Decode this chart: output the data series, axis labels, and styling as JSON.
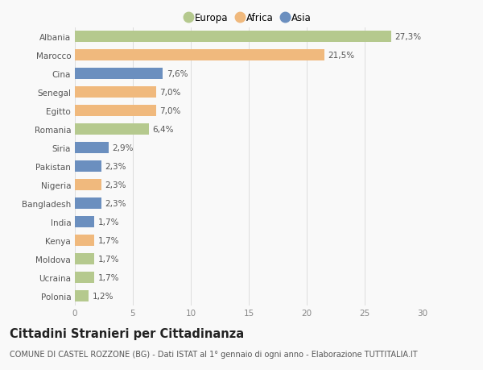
{
  "categories": [
    "Albania",
    "Marocco",
    "Cina",
    "Senegal",
    "Egitto",
    "Romania",
    "Siria",
    "Pakistan",
    "Nigeria",
    "Bangladesh",
    "India",
    "Kenya",
    "Moldova",
    "Ucraina",
    "Polonia"
  ],
  "values": [
    27.3,
    21.5,
    7.6,
    7.0,
    7.0,
    6.4,
    2.9,
    2.3,
    2.3,
    2.3,
    1.7,
    1.7,
    1.7,
    1.7,
    1.2
  ],
  "labels": [
    "27,3%",
    "21,5%",
    "7,6%",
    "7,0%",
    "7,0%",
    "6,4%",
    "2,9%",
    "2,3%",
    "2,3%",
    "2,3%",
    "1,7%",
    "1,7%",
    "1,7%",
    "1,7%",
    "1,2%"
  ],
  "continents": [
    "Europa",
    "Africa",
    "Asia",
    "Africa",
    "Africa",
    "Europa",
    "Asia",
    "Asia",
    "Africa",
    "Asia",
    "Asia",
    "Africa",
    "Europa",
    "Europa",
    "Europa"
  ],
  "colors": {
    "Europa": "#b5c98e",
    "Africa": "#f0b97d",
    "Asia": "#6b8fbf"
  },
  "legend_order": [
    "Europa",
    "Africa",
    "Asia"
  ],
  "title": "Cittadini Stranieri per Cittadinanza",
  "subtitle": "COMUNE DI CASTEL ROZZONE (BG) - Dati ISTAT al 1° gennaio di ogni anno - Elaborazione TUTTITALIA.IT",
  "xlim": [
    0,
    30
  ],
  "xticks": [
    0,
    5,
    10,
    15,
    20,
    25,
    30
  ],
  "background_color": "#f9f9f9",
  "bar_height": 0.65,
  "label_fontsize": 7.5,
  "ytick_fontsize": 7.5,
  "xtick_fontsize": 7.5,
  "title_fontsize": 10.5,
  "subtitle_fontsize": 7.0,
  "legend_fontsize": 8.5
}
